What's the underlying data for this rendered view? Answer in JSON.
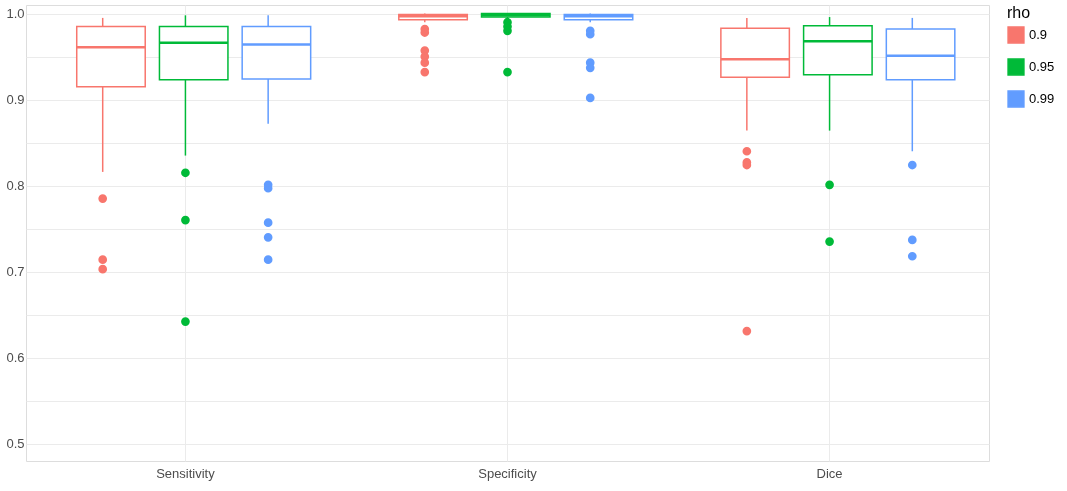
{
  "chart_data": {
    "type": "box",
    "categories": [
      "Sensitivity",
      "Specificity",
      "Dice"
    ],
    "legend_title": "rho",
    "legend": "right",
    "grid": true,
    "ylim": [
      0.48,
      1.01
    ],
    "yticks": [
      0.5,
      {
        "value": 0.55,
        "label": null
      },
      0.6,
      {
        "value": 0.65,
        "label": null
      },
      0.7,
      {
        "value": 0.75,
        "label": null
      },
      0.8,
      {
        "value": 0.85,
        "label": null
      },
      0.9,
      {
        "value": 0.95,
        "label": null
      },
      {
        "value": 1.0,
        "label": "1.0"
      }
    ],
    "series": [
      {
        "name": "0.9",
        "color": "#f8766d",
        "boxes": [
          {
            "low": 0.816,
            "q1": 0.915,
            "median": 0.961,
            "q3": 0.985,
            "high": 0.995,
            "outliers": [
              0.785,
              0.714,
              0.703
            ]
          },
          {
            "low": 0.99,
            "q1": 0.993,
            "median": 0.997,
            "q3": 0.999,
            "high": 1.0,
            "outliers": [
              0.982,
              0.978,
              0.957,
              0.95,
              0.943,
              0.932
            ]
          },
          {
            "low": 0.864,
            "q1": 0.926,
            "median": 0.947,
            "q3": 0.983,
            "high": 0.995,
            "outliers": [
              0.84,
              0.827,
              0.824,
              0.631
            ]
          }
        ]
      },
      {
        "name": "0.95",
        "color": "#00ba38",
        "boxes": [
          {
            "low": 0.835,
            "q1": 0.923,
            "median": 0.966,
            "q3": 0.985,
            "high": 0.998,
            "outliers": [
              0.815,
              0.76,
              0.642
            ]
          },
          {
            "low": 0.994,
            "q1": 0.996,
            "median": 0.998,
            "q3": 1.0,
            "high": 1.0,
            "outliers": [
              0.99,
              0.985,
              0.98,
              0.932
            ]
          },
          {
            "low": 0.864,
            "q1": 0.929,
            "median": 0.968,
            "q3": 0.986,
            "high": 0.996,
            "outliers": [
              0.801,
              0.735
            ]
          }
        ]
      },
      {
        "name": "0.99",
        "color": "#619cff",
        "boxes": [
          {
            "low": 0.872,
            "q1": 0.924,
            "median": 0.964,
            "q3": 0.985,
            "high": 0.998,
            "outliers": [
              0.801,
              0.797,
              0.757,
              0.74,
              0.714
            ]
          },
          {
            "low": 0.99,
            "q1": 0.993,
            "median": 0.997,
            "q3": 0.999,
            "high": 1.0,
            "outliers": [
              0.98,
              0.976,
              0.943,
              0.937,
              0.902
            ]
          },
          {
            "low": 0.84,
            "q1": 0.923,
            "median": 0.951,
            "q3": 0.982,
            "high": 0.995,
            "outliers": [
              0.824,
              0.737,
              0.718
            ]
          }
        ]
      }
    ]
  }
}
